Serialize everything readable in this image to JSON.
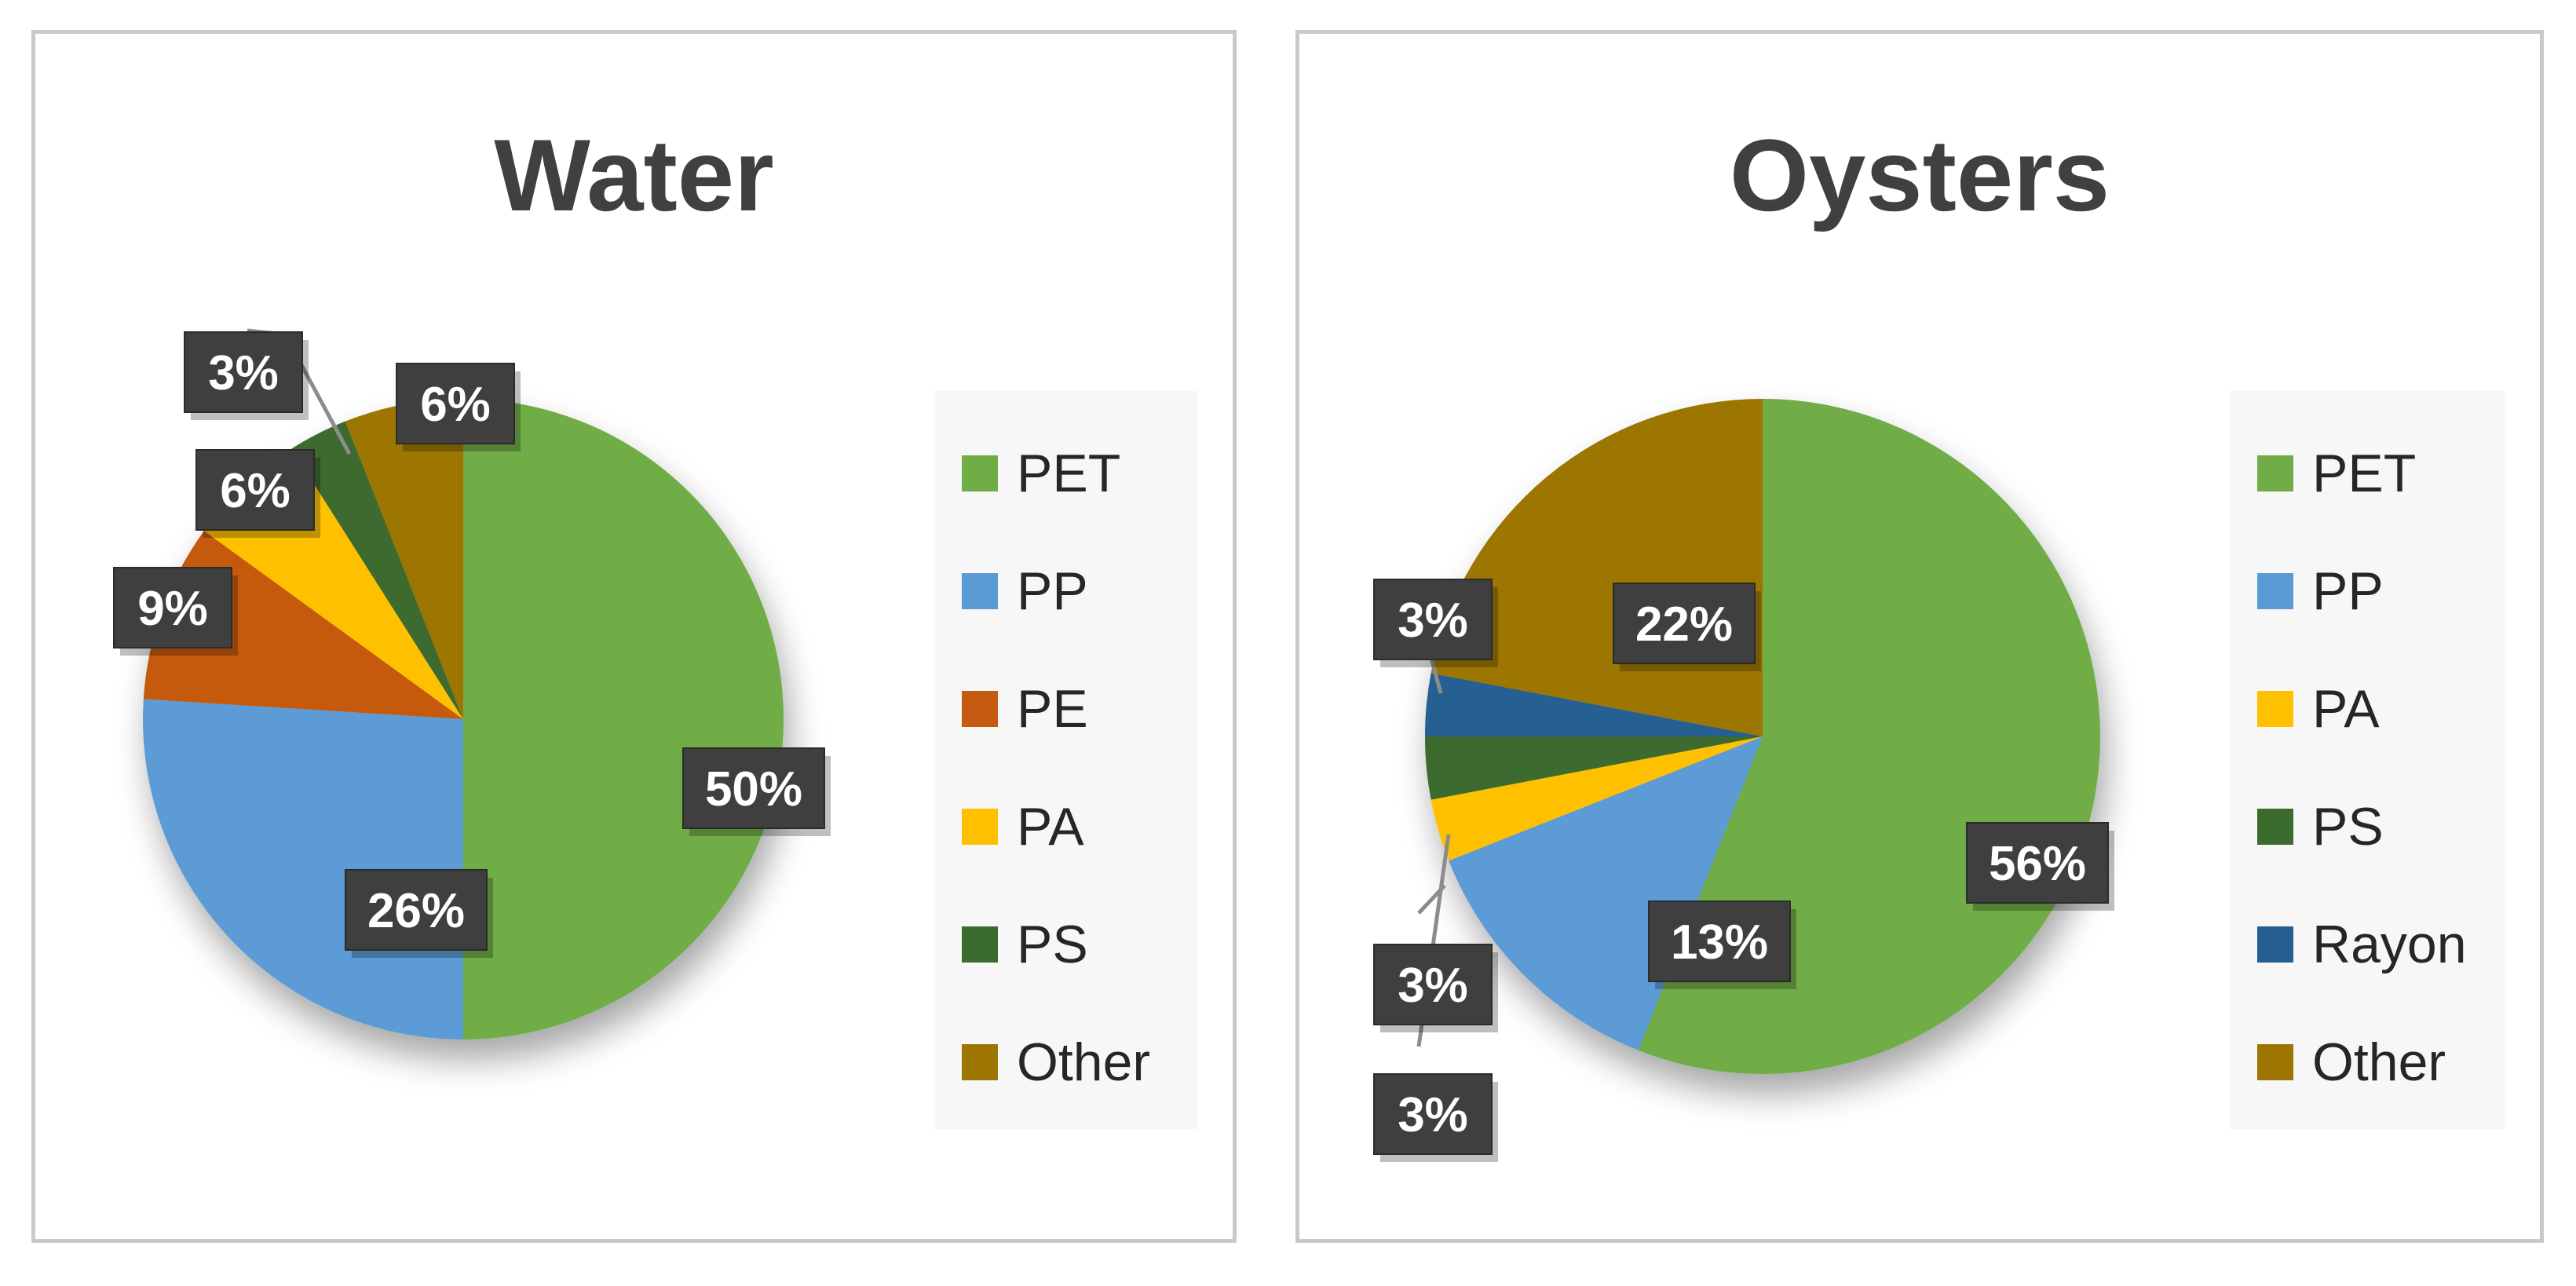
{
  "chart_data": [
    {
      "type": "pie",
      "title": "Water",
      "categories": [
        "PET",
        "PP",
        "PE",
        "PA",
        "PS",
        "Other"
      ],
      "values": [
        50,
        26,
        9,
        6,
        3,
        6
      ],
      "data_labels": [
        "50%",
        "26%",
        "9%",
        "6%",
        "3%",
        "6%"
      ],
      "colors": [
        "#70ad47",
        "#5b9bd5",
        "#c55a11",
        "#ffc000",
        "#3c6b2e",
        "#9c7600"
      ],
      "legend_position": "right",
      "legend": [
        "PET",
        "PP",
        "PE",
        "PA",
        "PS",
        "Other"
      ]
    },
    {
      "type": "pie",
      "title": "Oysters",
      "categories": [
        "PET",
        "PP",
        "PA",
        "PS",
        "Rayon",
        "Other"
      ],
      "values": [
        56,
        13,
        3,
        3,
        3,
        22
      ],
      "data_labels": [
        "56%",
        "13%",
        "3%",
        "3%",
        "3%",
        "22%"
      ],
      "colors": [
        "#70ad47",
        "#5b9bd5",
        "#ffc000",
        "#3c6b2e",
        "#255e91",
        "#9c7600"
      ],
      "legend_position": "right",
      "legend": [
        "PET",
        "PP",
        "PA",
        "PS",
        "Rayon",
        "Other"
      ]
    }
  ]
}
